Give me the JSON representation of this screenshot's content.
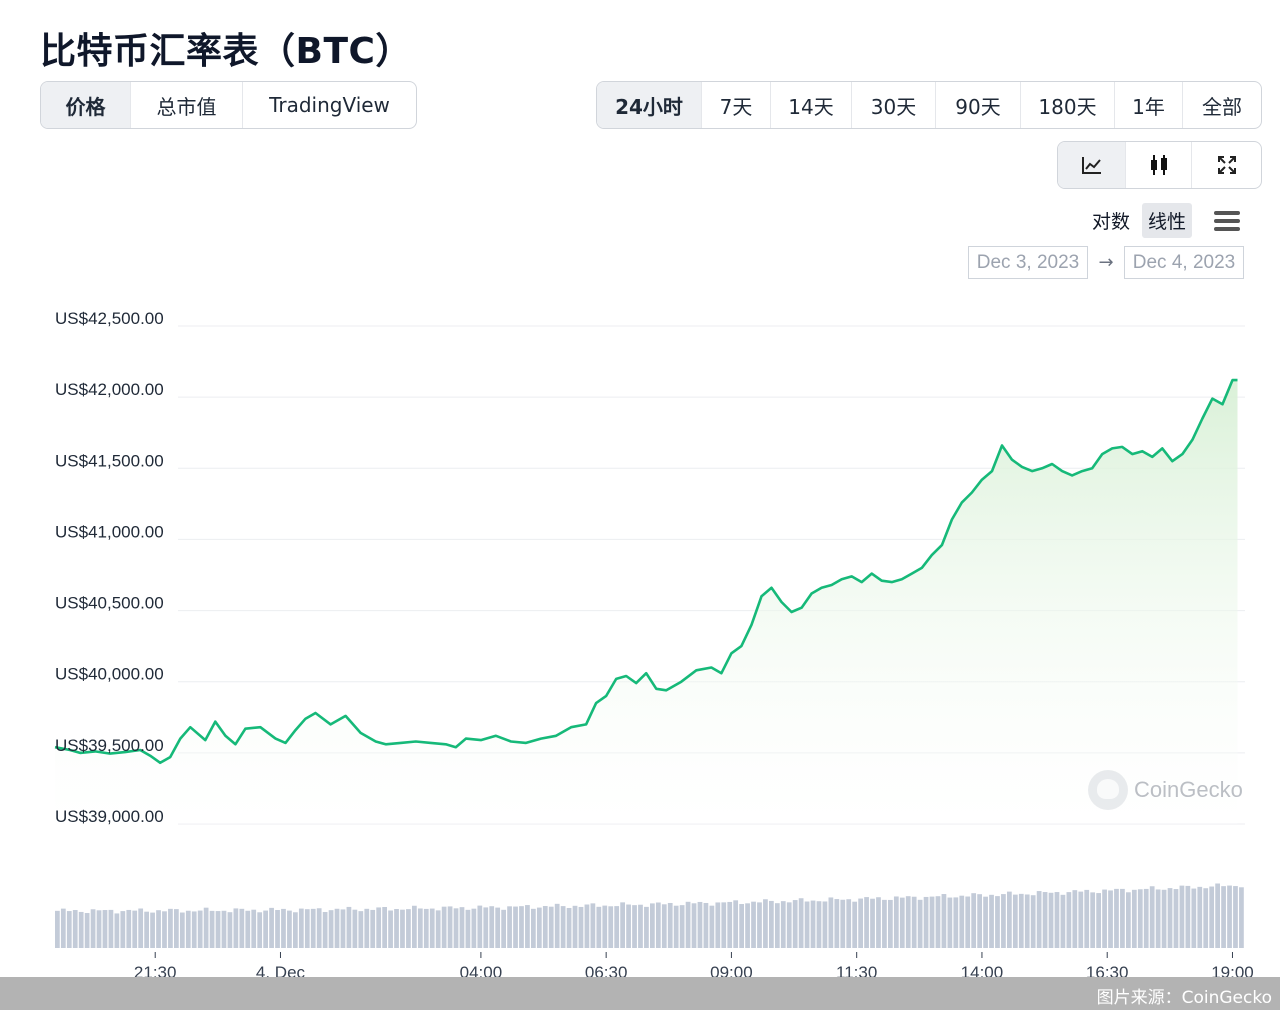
{
  "title": "比特币汇率表（BTC）",
  "metric_tabs": [
    {
      "label": "价格",
      "active": true
    },
    {
      "label": "总市值",
      "active": false
    },
    {
      "label": "TradingView",
      "active": false
    }
  ],
  "range_tabs": [
    {
      "label": "24小时",
      "active": true
    },
    {
      "label": "7天",
      "active": false
    },
    {
      "label": "14天",
      "active": false
    },
    {
      "label": "30天",
      "active": false
    },
    {
      "label": "90天",
      "active": false
    },
    {
      "label": "180天",
      "active": false
    },
    {
      "label": "1年",
      "active": false
    },
    {
      "label": "全部",
      "active": false
    }
  ],
  "chart_type_icons": [
    "line-chart-icon",
    "candlestick-icon",
    "fullscreen-icon"
  ],
  "scale": {
    "log_label": "对数",
    "linear_label": "线性",
    "active": "linear"
  },
  "date_range": {
    "from": "Dec 3, 2023",
    "arrow": "→",
    "to": "Dec 4, 2023"
  },
  "watermark": "CoinGecko",
  "footer": "图片来源：CoinGecko",
  "colors": {
    "line": "#16b979",
    "fill_top": "#d8f0d6",
    "volume": "#c3cbd8",
    "grid": "#eceef1"
  },
  "chart_data": {
    "type": "area",
    "ylim": [
      39000,
      42700
    ],
    "yticks": [
      42500,
      42000,
      41500,
      41000,
      40500,
      40000,
      39500,
      39000
    ],
    "ytick_labels": [
      "US$42,500.00",
      "US$42,000.00",
      "US$41,500.00",
      "US$41,000.00",
      "US$40,500.00",
      "US$40,000.00",
      "US$39,500.00",
      "US$39,000.00"
    ],
    "xlim": [
      19.5,
      43.25
    ],
    "xticks": [
      {
        "t": 21.5,
        "label": "21:30"
      },
      {
        "t": 24,
        "label": "4. Dec"
      },
      {
        "t": 28,
        "label": "04:00"
      },
      {
        "t": 30.5,
        "label": "06:30"
      },
      {
        "t": 33,
        "label": "09:00"
      },
      {
        "t": 35.5,
        "label": "11:30"
      },
      {
        "t": 38,
        "label": "14:00"
      },
      {
        "t": 40.5,
        "label": "16:30"
      },
      {
        "t": 43,
        "label": "19:00"
      }
    ],
    "series": [
      {
        "points": [
          [
            19.5,
            39540
          ],
          [
            19.8,
            39520
          ],
          [
            20.0,
            39500
          ],
          [
            20.3,
            39510
          ],
          [
            20.6,
            39495
          ],
          [
            20.9,
            39505
          ],
          [
            21.2,
            39520
          ],
          [
            21.4,
            39480
          ],
          [
            21.6,
            39430
          ],
          [
            21.8,
            39470
          ],
          [
            22.0,
            39600
          ],
          [
            22.2,
            39680
          ],
          [
            22.5,
            39590
          ],
          [
            22.7,
            39720
          ],
          [
            22.9,
            39620
          ],
          [
            23.1,
            39560
          ],
          [
            23.3,
            39670
          ],
          [
            23.6,
            39680
          ],
          [
            23.9,
            39600
          ],
          [
            24.1,
            39570
          ],
          [
            24.3,
            39660
          ],
          [
            24.5,
            39740
          ],
          [
            24.7,
            39780
          ],
          [
            25.0,
            39700
          ],
          [
            25.3,
            39760
          ],
          [
            25.6,
            39640
          ],
          [
            25.9,
            39580
          ],
          [
            26.1,
            39560
          ],
          [
            26.4,
            39570
          ],
          [
            26.7,
            39580
          ],
          [
            27.0,
            39570
          ],
          [
            27.3,
            39560
          ],
          [
            27.5,
            39540
          ],
          [
            27.7,
            39600
          ],
          [
            28.0,
            39590
          ],
          [
            28.3,
            39620
          ],
          [
            28.6,
            39580
          ],
          [
            28.9,
            39570
          ],
          [
            29.2,
            39600
          ],
          [
            29.5,
            39620
          ],
          [
            29.8,
            39680
          ],
          [
            30.1,
            39700
          ],
          [
            30.3,
            39850
          ],
          [
            30.5,
            39900
          ],
          [
            30.7,
            40020
          ],
          [
            30.9,
            40040
          ],
          [
            31.1,
            39990
          ],
          [
            31.3,
            40060
          ],
          [
            31.5,
            39950
          ],
          [
            31.7,
            39940
          ],
          [
            32.0,
            40000
          ],
          [
            32.3,
            40080
          ],
          [
            32.6,
            40100
          ],
          [
            32.8,
            40060
          ],
          [
            33.0,
            40200
          ],
          [
            33.2,
            40250
          ],
          [
            33.4,
            40400
          ],
          [
            33.6,
            40600
          ],
          [
            33.8,
            40660
          ],
          [
            34.0,
            40560
          ],
          [
            34.2,
            40490
          ],
          [
            34.4,
            40520
          ],
          [
            34.6,
            40620
          ],
          [
            34.8,
            40660
          ],
          [
            35.0,
            40680
          ],
          [
            35.2,
            40720
          ],
          [
            35.4,
            40740
          ],
          [
            35.6,
            40700
          ],
          [
            35.8,
            40760
          ],
          [
            36.0,
            40710
          ],
          [
            36.2,
            40700
          ],
          [
            36.4,
            40720
          ],
          [
            36.6,
            40760
          ],
          [
            36.8,
            40800
          ],
          [
            37.0,
            40890
          ],
          [
            37.2,
            40960
          ],
          [
            37.4,
            41140
          ],
          [
            37.6,
            41260
          ],
          [
            37.8,
            41330
          ],
          [
            38.0,
            41420
          ],
          [
            38.2,
            41480
          ],
          [
            38.4,
            41660
          ],
          [
            38.6,
            41560
          ],
          [
            38.8,
            41510
          ],
          [
            39.0,
            41480
          ],
          [
            39.2,
            41500
          ],
          [
            39.4,
            41530
          ],
          [
            39.6,
            41480
          ],
          [
            39.8,
            41450
          ],
          [
            40.0,
            41480
          ],
          [
            40.2,
            41500
          ],
          [
            40.4,
            41600
          ],
          [
            40.6,
            41640
          ],
          [
            40.8,
            41650
          ],
          [
            41.0,
            41600
          ],
          [
            41.2,
            41620
          ],
          [
            41.4,
            41580
          ],
          [
            41.6,
            41640
          ],
          [
            41.8,
            41550
          ],
          [
            42.0,
            41600
          ],
          [
            42.2,
            41700
          ],
          [
            42.4,
            41850
          ],
          [
            42.6,
            41990
          ],
          [
            42.8,
            41950
          ],
          [
            43.0,
            42120
          ],
          [
            43.1,
            42120
          ]
        ]
      }
    ],
    "volume_level_range": [
      0.43,
      0.89
    ]
  }
}
